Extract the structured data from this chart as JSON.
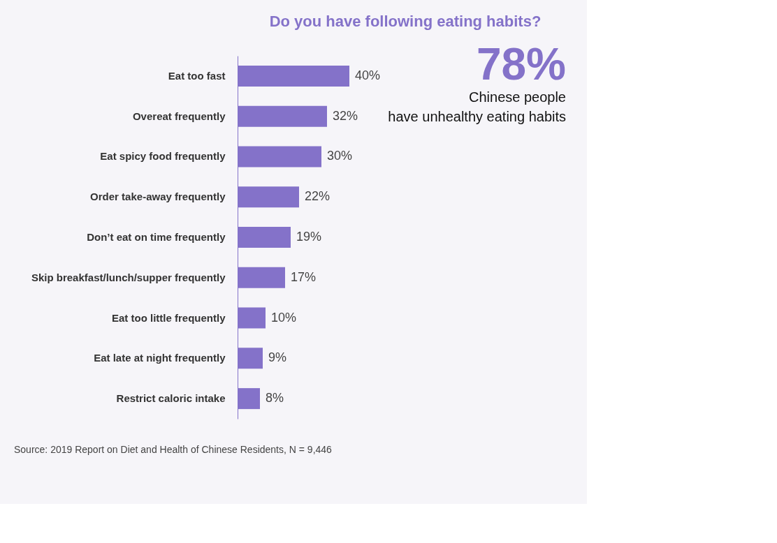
{
  "chart_data": {
    "type": "bar",
    "orientation": "horizontal",
    "title": "Do you have following eating habits?",
    "categories": [
      "Eat too fast",
      "Overeat frequently",
      "Eat spicy food frequently",
      "Order take-away frequently",
      "Don’t eat on time frequently",
      "Skip breakfast/lunch/supper frequently",
      "Eat too little frequently",
      "Eat late at night frequently",
      "Restrict caloric intake"
    ],
    "values": [
      40,
      32,
      30,
      22,
      19,
      17,
      10,
      9,
      8
    ],
    "value_labels": [
      "40%",
      "32%",
      "30%",
      "22%",
      "19%",
      "17%",
      "10%",
      "9%",
      "8%"
    ],
    "color": "#8472c9",
    "annotations": [
      "78%",
      "Chinese people have unhealthy eating habits",
      "Source: 2019 Report on Diet and Health of Chinese Residents, N = 9,446"
    ]
  }
}
